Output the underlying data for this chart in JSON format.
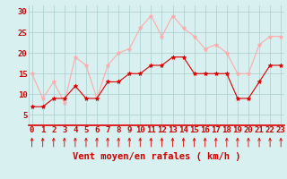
{
  "hours": [
    0,
    1,
    2,
    3,
    4,
    5,
    6,
    7,
    8,
    9,
    10,
    11,
    12,
    13,
    14,
    15,
    16,
    17,
    18,
    19,
    20,
    21,
    22,
    23
  ],
  "vent_moyen": [
    7,
    7,
    9,
    9,
    12,
    9,
    9,
    13,
    13,
    15,
    15,
    17,
    17,
    19,
    19,
    15,
    15,
    15,
    15,
    9,
    9,
    13,
    17,
    17
  ],
  "vent_rafales": [
    15,
    9,
    13,
    8,
    19,
    17,
    9,
    17,
    20,
    21,
    26,
    29,
    24,
    29,
    26,
    24,
    21,
    22,
    20,
    15,
    15,
    22,
    24,
    24
  ],
  "color_moyen": "#dd0000",
  "color_rafales": "#ffaaaa",
  "background_color": "#d8f0f0",
  "grid_color": "#aacccc",
  "xlabel": "Vent moyen/en rafales ( km/h )",
  "xlabel_color": "#cc0000",
  "ylabel_values": [
    5,
    10,
    15,
    20,
    25,
    30
  ],
  "ylim": [
    2.5,
    31.5
  ],
  "xlim": [
    -0.3,
    23.3
  ],
  "tick_fontsize": 6.5,
  "xlabel_fontsize": 7.5
}
